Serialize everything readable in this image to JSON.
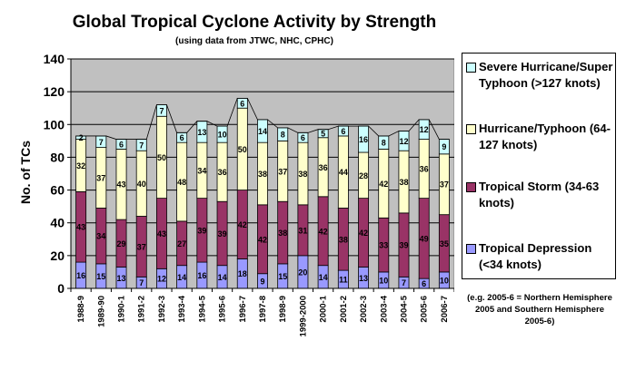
{
  "chart_data": {
    "type": "bar",
    "stacked": true,
    "title": "Global Tropical Cyclone Activity by Strength",
    "subtitle": "(using data from JTWC, NHC, CPHC)",
    "ylabel": "No. of TCs",
    "ylim": [
      0,
      140
    ],
    "yticks": [
      0,
      20,
      40,
      60,
      80,
      100,
      120,
      140
    ],
    "grid": true,
    "legend_position": "right",
    "categories": [
      "1988-9",
      "1989-90",
      "1990-1",
      "1991-2",
      "1992-3",
      "1993-4",
      "1994-5",
      "1995-6",
      "1996-7",
      "1997-8",
      "1998-9",
      "1999-2000",
      "2000-1",
      "2001-2",
      "2002-3",
      "2003-4",
      "2004-5",
      "2005-6",
      "2006-7"
    ],
    "series": [
      {
        "name": "Tropical Depression (<34 knots)",
        "color": "#9999ff",
        "values": [
          16,
          15,
          13,
          7,
          12,
          14,
          16,
          14,
          18,
          9,
          15,
          20,
          14,
          11,
          13,
          10,
          7,
          6,
          10
        ]
      },
      {
        "name": "Tropical Storm (34-63 knots)",
        "color": "#993366",
        "values": [
          43,
          34,
          29,
          37,
          43,
          27,
          39,
          39,
          42,
          42,
          38,
          31,
          42,
          38,
          42,
          33,
          39,
          49,
          35
        ]
      },
      {
        "name": "Hurricane/Typhoon (64-127 knots)",
        "color": "#ffffcc",
        "values": [
          32,
          37,
          43,
          40,
          50,
          48,
          34,
          36,
          50,
          38,
          37,
          38,
          36,
          44,
          28,
          42,
          38,
          36,
          37
        ]
      },
      {
        "name": "Severe Hurricane/Super Typhoon (>127 knots)",
        "color": "#ccffff",
        "values": [
          2,
          7,
          6,
          7,
          7,
          6,
          13,
          10,
          6,
          14,
          8,
          6,
          5,
          6,
          16,
          8,
          12,
          12,
          9
        ]
      }
    ],
    "annotation": "(e.g. 2005-6 = Northern Hemisphere 2005 and Southern Hemisphere 2005-6)"
  }
}
